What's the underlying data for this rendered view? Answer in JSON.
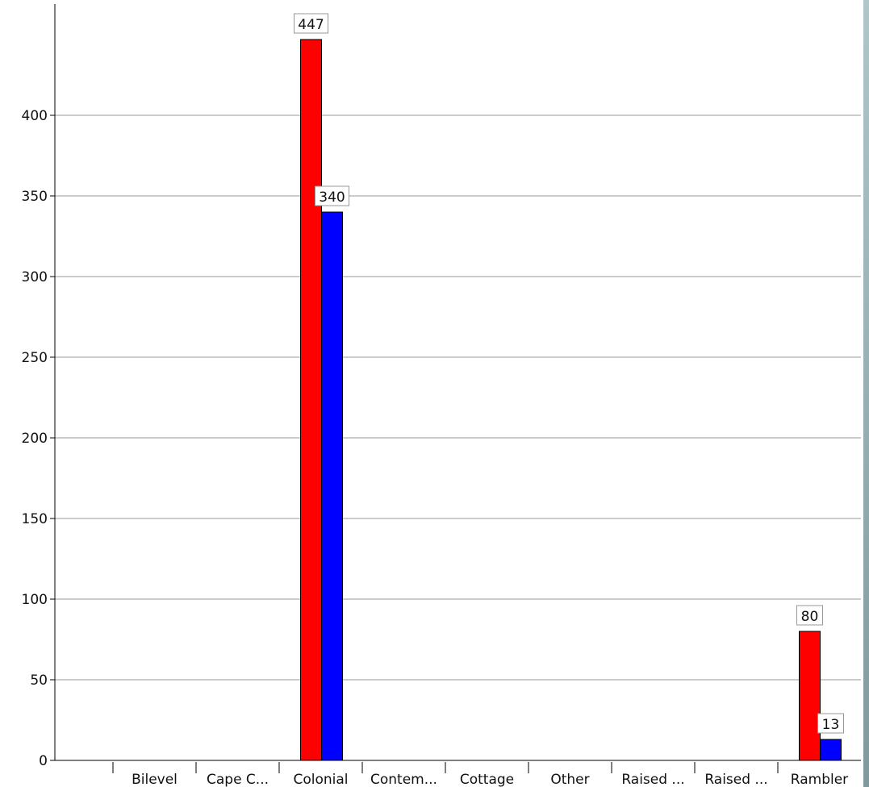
{
  "colors": {
    "series_1": "#ff0000",
    "series_2": "#0000ff",
    "background": "#ffffff",
    "grid": "#999999"
  },
  "chart_data": {
    "type": "bar",
    "categories": [
      "Bilevel",
      "Cape C...",
      "Colonial",
      "Contem...",
      "Cottage",
      "Other",
      "Raised ...",
      "Raised ...",
      "Rambler"
    ],
    "series": [
      {
        "color": "#ff0000",
        "values": [
          0,
          0,
          447,
          0,
          0,
          0,
          0,
          0,
          80
        ]
      },
      {
        "color": "#0000ff",
        "values": [
          0,
          0,
          340,
          0,
          0,
          0,
          0,
          0,
          13
        ]
      }
    ],
    "data_labels": [
      {
        "category": "Colonial",
        "series": 0,
        "text": "447"
      },
      {
        "category": "Colonial",
        "series": 1,
        "text": "340"
      },
      {
        "category": "Rambler",
        "series": 0,
        "text": "80"
      },
      {
        "category": "Rambler",
        "series": 1,
        "text": "13"
      }
    ],
    "y_ticks": [
      0,
      50,
      100,
      150,
      200,
      250,
      300,
      350,
      400
    ],
    "ylim": [
      0,
      450
    ],
    "grid": true,
    "title": "",
    "xlabel": "",
    "ylabel": ""
  }
}
